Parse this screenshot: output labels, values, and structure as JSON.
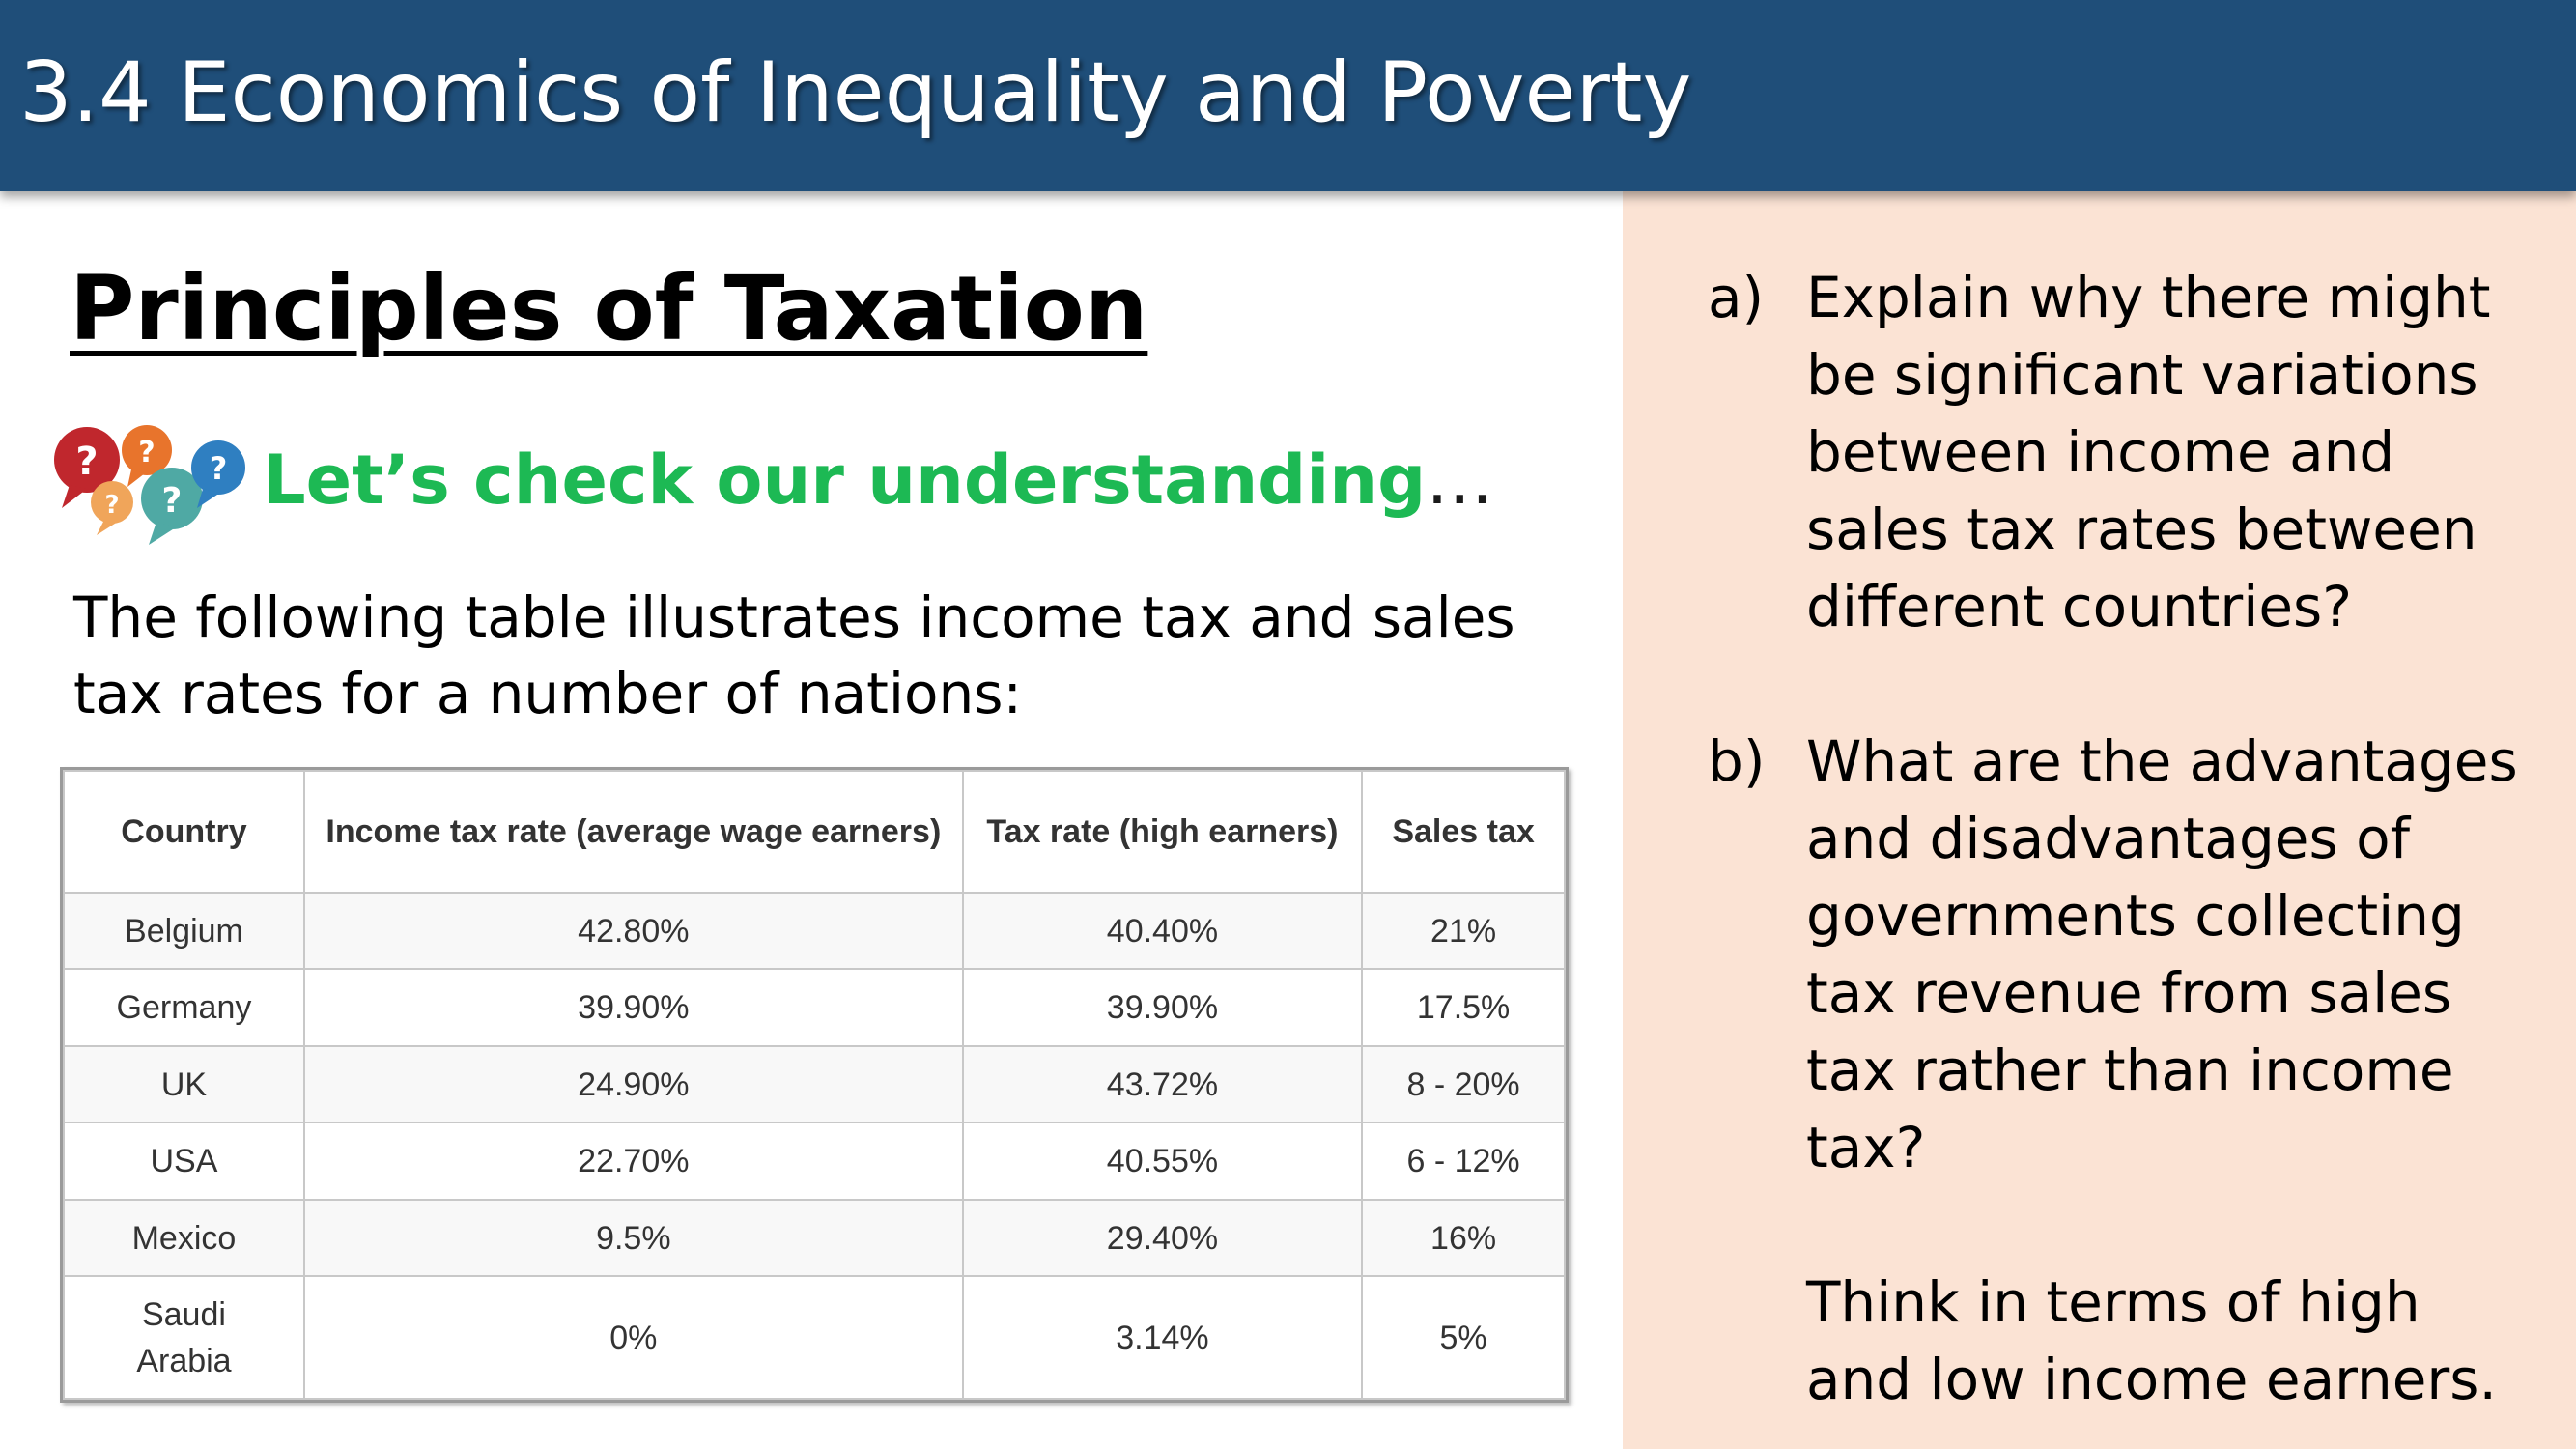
{
  "header": {
    "title": "3.4 Economics of Inequality and Poverty"
  },
  "main": {
    "heading": "Principles of Taxation",
    "check_text": "Let’s check our understanding",
    "check_ellipsis": "…",
    "intro": "The following table illustrates income tax and sales tax rates for a number of nations:",
    "icon": "question-bubbles-icon"
  },
  "table": {
    "headers": [
      "Country",
      "Income tax rate (average wage earners)",
      "Tax rate (high earners)",
      "Sales tax"
    ],
    "rows": [
      [
        "Belgium",
        "42.80%",
        "40.40%",
        "21%"
      ],
      [
        "Germany",
        "39.90%",
        "39.90%",
        "17.5%"
      ],
      [
        "UK",
        "24.90%",
        "43.72%",
        "8 - 20%"
      ],
      [
        "USA",
        "22.70%",
        "40.55%",
        "6 - 12%"
      ],
      [
        "Mexico",
        "9.5%",
        "29.40%",
        "16%"
      ],
      [
        "Saudi Arabia",
        "0%",
        "3.14%",
        "5%"
      ]
    ]
  },
  "questions": {
    "a_marker": "a)",
    "a_text": "Explain why there might be significant variations between income and sales tax rates between different countries?",
    "b_marker": "b)",
    "b_text": "What are the advantages and disadvantages of governments collecting tax revenue from sales tax rather than income tax?",
    "note": "Think in terms of high and low income earners."
  },
  "colors": {
    "header_bg": "#1f4e79",
    "panel_bg": "#fbe3d4",
    "accent_green": "#1db954"
  }
}
